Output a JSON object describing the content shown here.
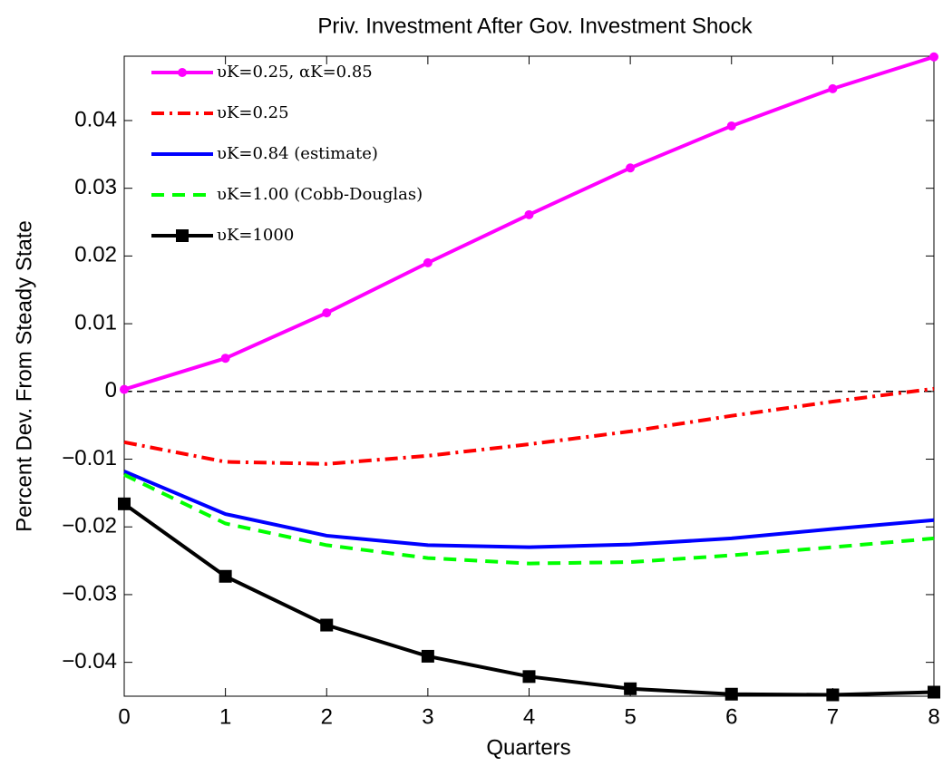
{
  "chart_data": {
    "type": "line",
    "title": "Priv. Investment After Gov. Investment Shock",
    "x_label": "Quarters",
    "y_label": "Percent Dev. From Steady State",
    "x": [
      0,
      1,
      2,
      3,
      4,
      5,
      6,
      7,
      8
    ],
    "series": [
      {
        "name": "υK=0.25, αK=0.85",
        "color": "#ff00ff",
        "line_style": "solid",
        "marker": "circle",
        "values": [
          0.0003,
          0.0049,
          0.0116,
          0.019,
          0.0261,
          0.033,
          0.0392,
          0.0447,
          0.0494
        ]
      },
      {
        "name": "υK=0.25",
        "color": "#ff0000",
        "line_style": "dash-dot",
        "marker": "none",
        "values": [
          -0.0075,
          -0.0104,
          -0.0107,
          -0.0095,
          -0.0078,
          -0.0059,
          -0.0036,
          -0.0015,
          0.0004
        ]
      },
      {
        "name": "υK=0.84 (estimate)",
        "color": "#0000ff",
        "line_style": "solid",
        "marker": "none",
        "values": [
          -0.0118,
          -0.0181,
          -0.0213,
          -0.0227,
          -0.023,
          -0.0226,
          -0.0217,
          -0.0203,
          -0.019
        ]
      },
      {
        "name": "υK=1.00 (Cobb-Douglas)",
        "color": "#00ff00",
        "line_style": "dash",
        "marker": "none",
        "values": [
          -0.0123,
          -0.0195,
          -0.0227,
          -0.0246,
          -0.0254,
          -0.0252,
          -0.0242,
          -0.023,
          -0.0217
        ]
      },
      {
        "name": "υK=1000",
        "color": "#000000",
        "line_style": "solid",
        "marker": "square",
        "values": [
          -0.0166,
          -0.0273,
          -0.0345,
          -0.0391,
          -0.0421,
          -0.0439,
          -0.0447,
          -0.0448,
          -0.0444
        ]
      }
    ],
    "xlim": [
      0,
      8
    ],
    "xticks": [
      0,
      1,
      2,
      3,
      4,
      5,
      6,
      7,
      8
    ],
    "ylim": [
      -0.045,
      0.0495
    ],
    "yticks": [
      {
        "value": -0.04,
        "label": "−0.04"
      },
      {
        "value": -0.03,
        "label": "−0.03"
      },
      {
        "value": -0.02,
        "label": "−0.02"
      },
      {
        "value": -0.01,
        "label": "−0.01"
      },
      0,
      0.01,
      0.02,
      0.03,
      0.04
    ],
    "zero_line": true,
    "grid": false,
    "legend": "upper left"
  }
}
